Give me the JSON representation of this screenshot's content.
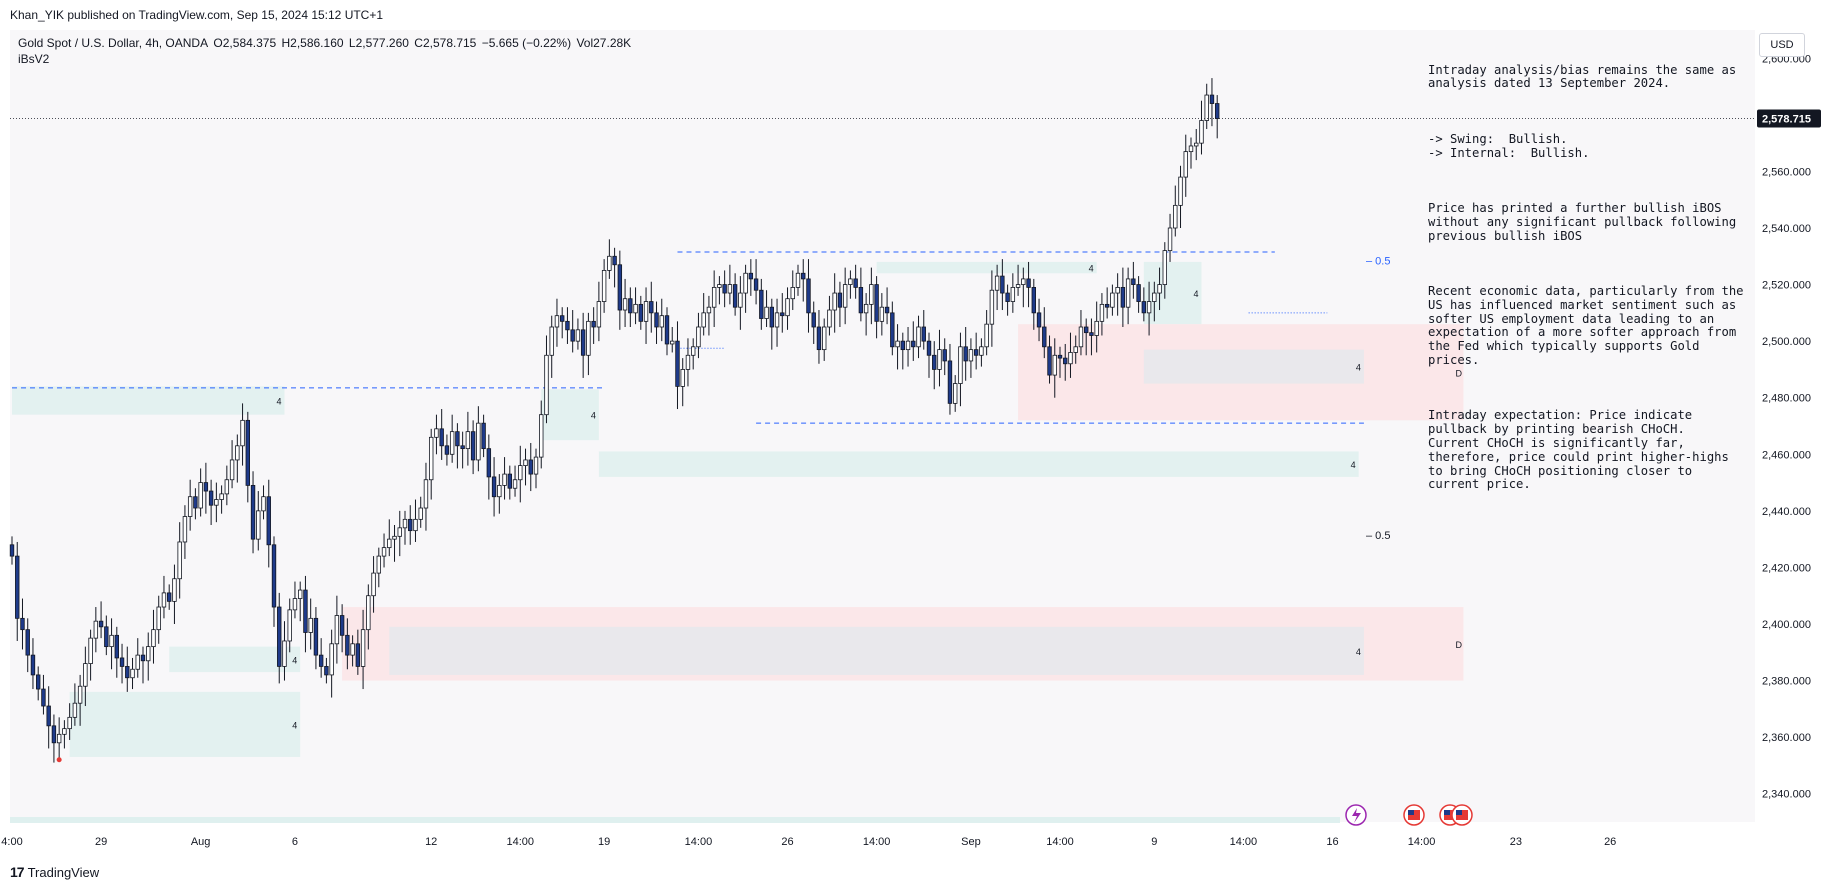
{
  "header": {
    "published_by": "Khan_YIK published on TradingView.com, Sep 15, 2024 15:12 UTC+1"
  },
  "legend": {
    "symbol": "Gold Spot / U.S. Dollar, 4h, OANDA",
    "open": "O2,584.375",
    "high": "H2,586.160",
    "low": "L2,577.260",
    "close": "C2,578.715",
    "change": "−5.665 (−0.22%)",
    "volume": "Vol27.28K",
    "indicator": "iBsV2"
  },
  "currency": "USD",
  "notes": [
    "Intraday analysis/bias remains the same as analysis dated 13 September 2024.",
    "-> Swing:  Bullish.\n-> Internal:  Bullish.",
    "Price has printed a further bullish iBOS without any significant pullback following previous bullish iBOS",
    "Recent economic data, particularly from the US has influenced market sentiment such as softer US employment data leading to an expectation of a more softer approach from the Fed which typically supports Gold prices.",
    "Intraday expectation: Price indicate pullback by printing bearish CHoCH.  Current CHoCH is significantly far, therefore, price could print higher-highs to bring CHoCH positioning closer to current price."
  ],
  "footer": {
    "brand": "TradingView"
  },
  "colors": {
    "bull_body": "#ffffff",
    "bear_body": "#1e3a8a",
    "wick": "#131722",
    "demand_zone": "#dff0ef",
    "supply_zone": "#fbe4e6",
    "grey_zone": "#e5e7ec",
    "level_line": "#2962ff"
  },
  "chart_data": {
    "type": "candlestick",
    "interval": "4h",
    "ylim": [
      2330,
      2610
    ],
    "y_ticks": [
      2340,
      2360,
      2380,
      2400,
      2420,
      2440,
      2460,
      2480,
      2500,
      2520,
      2540,
      2560,
      2580,
      2600
    ],
    "y_tick_labels": [
      "2,340.000",
      "2,360.000",
      "2,380.000",
      "2,400.000",
      "2,420.000",
      "2,440.000",
      "2,460.000",
      "2,480.000",
      "2,500.000",
      "2,520.000",
      "2,540.000",
      "2,560.000",
      "2,580.000",
      "2,600.000"
    ],
    "x_ticks": [
      {
        "i": 0,
        "label": "4:00"
      },
      {
        "i": 17,
        "label": "29"
      },
      {
        "i": 36,
        "label": "Aug"
      },
      {
        "i": 54,
        "label": "6"
      },
      {
        "i": 80,
        "label": "12"
      },
      {
        "i": 97,
        "label": "14:00"
      },
      {
        "i": 113,
        "label": "19"
      },
      {
        "i": 131,
        "label": "14:00"
      },
      {
        "i": 148,
        "label": "26"
      },
      {
        "i": 165,
        "label": "14:00"
      },
      {
        "i": 183,
        "label": "Sep"
      },
      {
        "i": 200,
        "label": "14:00"
      },
      {
        "i": 218,
        "label": "9"
      },
      {
        "i": 235,
        "label": "14:00"
      },
      {
        "i": 252,
        "label": "16"
      },
      {
        "i": 269,
        "label": "14:00"
      },
      {
        "i": 287,
        "label": "23"
      },
      {
        "i": 305,
        "label": "26"
      }
    ],
    "last_price": 2578.715,
    "last_price_label": "2,578.715",
    "closes": [
      2424,
      2402,
      2398,
      2389,
      2382,
      2377,
      2371,
      2364,
      2358,
      2361,
      2363,
      2367,
      2372,
      2378,
      2386,
      2395,
      2401,
      2399,
      2392,
      2396,
      2388,
      2385,
      2381,
      2384,
      2389,
      2387,
      2392,
      2398,
      2406,
      2411,
      2408,
      2416,
      2429,
      2438,
      2445,
      2441,
      2450,
      2447,
      2442,
      2444,
      2446,
      2451,
      2458,
      2463,
      2472,
      2449,
      2430,
      2440,
      2445,
      2428,
      2406,
      2385,
      2394,
      2405,
      2409,
      2412,
      2397,
      2402,
      2389,
      2385,
      2382,
      2393,
      2403,
      2396,
      2389,
      2393,
      2385,
      2398,
      2410,
      2418,
      2424,
      2427,
      2430,
      2431,
      2434,
      2437,
      2433,
      2437,
      2441,
      2451,
      2466,
      2469,
      2463,
      2460,
      2468,
      2463,
      2462,
      2468,
      2458,
      2471,
      2462,
      2452,
      2445,
      2449,
      2453,
      2448,
      2451,
      2456,
      2458,
      2453,
      2459,
      2474,
      2495,
      2505,
      2509,
      2507,
      2504,
      2500,
      2504,
      2495,
      2507,
      2505,
      2514,
      2525,
      2530,
      2527,
      2511,
      2515,
      2510,
      2513,
      2507,
      2514,
      2510,
      2505,
      2509,
      2499,
      2500,
      2484,
      2490,
      2495,
      2498,
      2505,
      2510,
      2512,
      2519,
      2520,
      2517,
      2520,
      2512,
      2517,
      2524,
      2522,
      2518,
      2508,
      2512,
      2505,
      2510,
      2509,
      2515,
      2519,
      2524,
      2522,
      2510,
      2505,
      2497,
      2505,
      2511,
      2517,
      2512,
      2520,
      2522,
      2519,
      2510,
      2513,
      2520,
      2507,
      2512,
      2510,
      2498,
      2500,
      2497,
      2500,
      2498,
      2505,
      2500,
      2495,
      2490,
      2497,
      2493,
      2478,
      2485,
      2498,
      2493,
      2497,
      2495,
      2498,
      2506,
      2518,
      2523,
      2517,
      2514,
      2519,
      2520,
      2522,
      2519,
      2510,
      2505,
      2498,
      2488,
      2495,
      2494,
      2492,
      2496,
      2498,
      2505,
      2503,
      2502,
      2507,
      2513,
      2512,
      2517,
      2519,
      2512,
      2522,
      2520,
      2514,
      2510,
      2514,
      2517,
      2520,
      2532,
      2540,
      2548,
      2558,
      2567,
      2569,
      2570,
      2578,
      2587,
      2584,
      2578.7
    ],
    "zones": [
      {
        "kind": "demand",
        "label": "4",
        "from_i": 0,
        "to_i": 52,
        "top": 2484,
        "bottom": 2474
      },
      {
        "kind": "demand",
        "label": "4",
        "from_i": 11,
        "to_i": 55,
        "top": 2376,
        "bottom": 2353
      },
      {
        "kind": "demand",
        "label": "4",
        "from_i": 30,
        "to_i": 55,
        "top": 2392,
        "bottom": 2383
      },
      {
        "kind": "demand",
        "label": "4",
        "from_i": 101,
        "to_i": 112,
        "top": 2483,
        "bottom": 2465
      },
      {
        "kind": "demand",
        "label": "4",
        "from_i": 112,
        "to_i": 257,
        "top": 2461,
        "bottom": 2452
      },
      {
        "kind": "demand",
        "label": "4",
        "from_i": 165,
        "to_i": 207,
        "top": 2528,
        "bottom": 2524
      },
      {
        "kind": "demand",
        "label": "4",
        "from_i": 216,
        "to_i": 227,
        "top": 2528,
        "bottom": 2506
      },
      {
        "kind": "supply",
        "label": "D",
        "from_i": 192,
        "to_i": 277,
        "top": 2506,
        "bottom": 2472
      },
      {
        "kind": "grey",
        "label": "4",
        "from_i": 216,
        "to_i": 258,
        "top": 2497,
        "bottom": 2485
      },
      {
        "kind": "supply",
        "label": "D",
        "from_i": 63,
        "to_i": 277,
        "top": 2406,
        "bottom": 2380
      },
      {
        "kind": "grey",
        "label": "4",
        "from_i": 72,
        "to_i": 258,
        "top": 2399,
        "bottom": 2382
      }
    ],
    "levels": [
      {
        "style": "dash",
        "from_i": 0,
        "to_i": 113,
        "price": 2483.5
      },
      {
        "style": "dash",
        "from_i": 127,
        "to_i": 241,
        "price": 2531.5
      },
      {
        "style": "dash",
        "from_i": 142,
        "to_i": 258,
        "price": 2471.0
      },
      {
        "style": "dot",
        "from_i": 127,
        "to_i": 136,
        "price": 2497.5
      },
      {
        "style": "dot",
        "from_i": 236,
        "to_i": 251,
        "price": 2510.0
      }
    ],
    "fib_labels": [
      {
        "text": "– 0.5",
        "price": 2528.5,
        "color": "#2962ff"
      },
      {
        "text": "– 0.5",
        "price": 2431.5,
        "color": "#131722"
      }
    ],
    "low_marker": {
      "i": 9,
      "price": 2352
    }
  }
}
